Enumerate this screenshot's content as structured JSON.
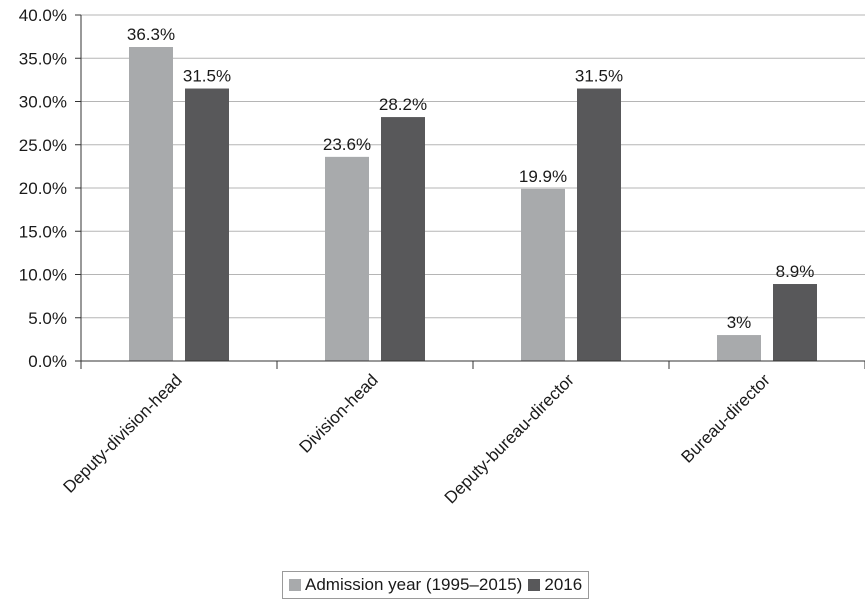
{
  "chart_data": {
    "type": "bar",
    "categories": [
      "Deputy-division-head",
      "Division-head",
      "Deputy-bureau-director",
      "Bureau-director"
    ],
    "series": [
      {
        "name": "Admission year (1995–2015)",
        "color": "#a8aaac",
        "values": [
          36.3,
          23.6,
          19.9,
          3
        ],
        "labels": [
          "36.3%",
          "23.6%",
          "19.9%",
          "3%"
        ]
      },
      {
        "name": "2016",
        "color": "#58585a",
        "values": [
          31.5,
          28.2,
          31.5,
          8.9
        ],
        "labels": [
          "31.5%",
          "28.2%",
          "31.5%",
          "8.9%"
        ]
      }
    ],
    "ylim": [
      0,
      40
    ],
    "yticks": [
      0,
      5,
      10,
      15,
      20,
      25,
      30,
      35,
      40
    ],
    "ytick_labels": [
      "0.0%",
      "5.0%",
      "10.0%",
      "15.0%",
      "20.0%",
      "25.0%",
      "30.0%",
      "35.0%",
      "40.0%"
    ],
    "grid": true,
    "legend_position": "bottom",
    "title": "",
    "xlabel": "",
    "ylabel": ""
  }
}
